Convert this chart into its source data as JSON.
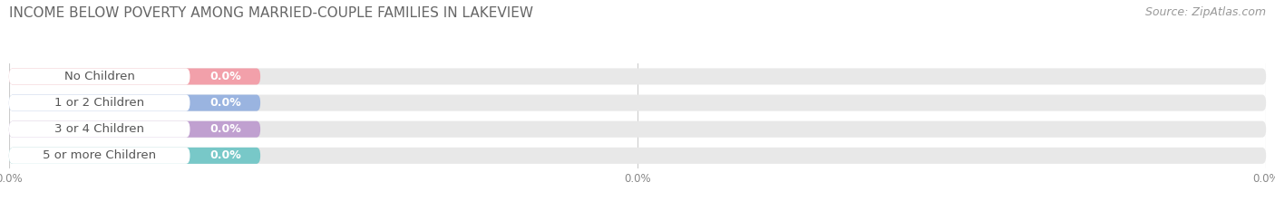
{
  "title": "INCOME BELOW POVERTY AMONG MARRIED-COUPLE FAMILIES IN LAKEVIEW",
  "source": "Source: ZipAtlas.com",
  "categories": [
    "No Children",
    "1 or 2 Children",
    "3 or 4 Children",
    "5 or more Children"
  ],
  "values": [
    0.0,
    0.0,
    0.0,
    0.0
  ],
  "bar_colors": [
    "#f2a0aa",
    "#9ab4e0",
    "#c0a0d0",
    "#78c8c8"
  ],
  "background_color": "#ffffff",
  "bar_bg_color": "#e8e8e8",
  "title_fontsize": 11,
  "source_fontsize": 9,
  "cat_label_fontsize": 9.5,
  "val_label_fontsize": 9,
  "figsize": [
    14.06,
    2.33
  ],
  "dpi": 100,
  "xtick_labels": [
    "0.0%",
    "0.0%",
    "0.0%"
  ],
  "xtick_positions": [
    0.0,
    50.0,
    100.0
  ]
}
